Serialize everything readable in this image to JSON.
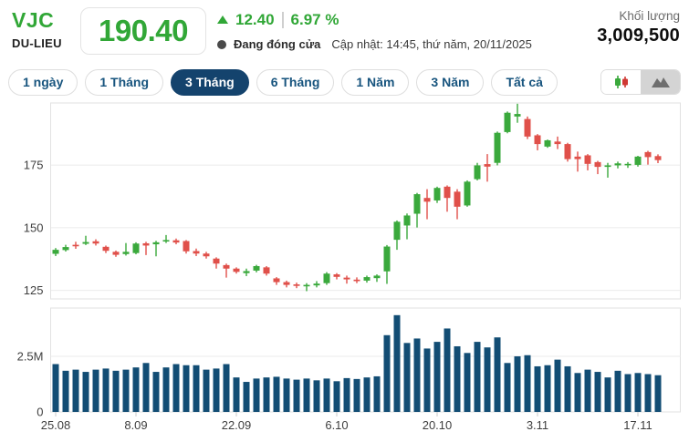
{
  "header": {
    "ticker": "VJC",
    "exchange": "DU-LIEU",
    "price": "190.40",
    "change_value": "12.40",
    "change_percent": "6.97 %",
    "market_status": "Đang đóng cửa",
    "updated": "Cập nhật: 14:45, thứ năm, 20/11/2025",
    "volume_label": "Khối lượng",
    "volume_value": "3,009,500"
  },
  "toolbar": {
    "ranges": [
      "1 ngày",
      "1 Tháng",
      "3 Tháng",
      "6 Tháng",
      "1 Năm",
      "3 Năm",
      "Tất cả"
    ],
    "active_range": "3 Tháng",
    "chart_types": [
      "candlestick",
      "area"
    ],
    "active_chart_type": "candlestick"
  },
  "colors": {
    "up_green": "#3aa93c",
    "down_red": "#e0504a",
    "text_green": "#31a737",
    "volume_bar": "#124d74",
    "button_navy": "#14436d",
    "button_text": "#17547e",
    "grid": "#ebebeb",
    "border": "#e2e2e2",
    "axis_text": "#3f3f3f",
    "tick_mark": "#c8c8c8"
  },
  "chart_data": {
    "type": "candlestick",
    "title": "VJC 3-month daily candlestick with volume",
    "price_axis": {
      "ticks": [
        175,
        150,
        125
      ],
      "min": 121.6,
      "max": 199.8,
      "grid": true
    },
    "volume_axis": {
      "ticks": [
        {
          "value": 2.5,
          "label": "2.5M"
        },
        {
          "value": 0,
          "label": "0"
        }
      ],
      "max": 4.67,
      "unit": "millions"
    },
    "x_labels": [
      {
        "label": "25.08",
        "slot": 0
      },
      {
        "label": "8.09",
        "slot": 8
      },
      {
        "label": "22.09",
        "slot": 18
      },
      {
        "label": "6.10",
        "slot": 28
      },
      {
        "label": "20.10",
        "slot": 38
      },
      {
        "label": "3.11",
        "slot": 48
      },
      {
        "label": "17.11",
        "slot": 58
      }
    ],
    "slots": 62,
    "candles": [
      [
        139.6,
        141.9,
        138.7,
        141.2
      ],
      [
        141.1,
        143.2,
        140.5,
        142.3
      ],
      [
        143.2,
        144.4,
        141.6,
        142.6
      ],
      [
        143.6,
        146.8,
        143.1,
        144.3
      ],
      [
        144.6,
        145.4,
        142.9,
        143.7
      ],
      [
        142.4,
        142.9,
        139.9,
        140.8
      ],
      [
        140.4,
        140.9,
        138.4,
        139.2
      ],
      [
        139.5,
        143.9,
        138.9,
        140.4
      ],
      [
        139.9,
        144.2,
        139.4,
        143.7
      ],
      [
        143.8,
        144.4,
        139.1,
        142.9
      ],
      [
        143.4,
        144.8,
        138.6,
        144.2
      ],
      [
        144.5,
        147.1,
        143.9,
        145.1
      ],
      [
        145.0,
        145.7,
        143.4,
        144.1
      ],
      [
        144.7,
        145.1,
        139.7,
        140.6
      ],
      [
        140.7,
        141.7,
        138.7,
        139.7
      ],
      [
        139.7,
        140.4,
        137.7,
        138.6
      ],
      [
        137.7,
        138.2,
        133.7,
        135.7
      ],
      [
        135.1,
        135.7,
        130.1,
        133.7
      ],
      [
        133.7,
        134.2,
        131.7,
        132.4
      ],
      [
        131.9,
        133.7,
        130.7,
        132.7
      ],
      [
        132.9,
        135.2,
        132.2,
        134.7
      ],
      [
        134.2,
        134.7,
        130.9,
        131.7
      ],
      [
        129.8,
        130.3,
        127.2,
        128.3
      ],
      [
        128.3,
        128.9,
        126.2,
        127.2
      ],
      [
        127.4,
        128.1,
        125.9,
        126.8
      ],
      [
        126.8,
        127.9,
        124.7,
        127.2
      ],
      [
        127.0,
        128.7,
        126.2,
        127.7
      ],
      [
        127.9,
        132.3,
        127.2,
        131.7
      ],
      [
        131.4,
        131.9,
        129.4,
        130.4
      ],
      [
        130.1,
        130.9,
        127.7,
        129.4
      ],
      [
        129.3,
        130.2,
        127.9,
        128.7
      ],
      [
        128.9,
        130.9,
        128.1,
        130.3
      ],
      [
        129.9,
        131.4,
        128.4,
        130.9
      ],
      [
        132.6,
        143.1,
        127.6,
        142.5
      ],
      [
        145.2,
        152.9,
        141.2,
        152.4
      ],
      [
        150.9,
        155.7,
        145.4,
        154.9
      ],
      [
        155.6,
        163.9,
        150.1,
        163.4
      ],
      [
        161.9,
        165.4,
        153.4,
        160.4
      ],
      [
        160.9,
        166.4,
        159.9,
        165.9
      ],
      [
        166.4,
        166.9,
        156.4,
        161.9
      ],
      [
        164.4,
        165.4,
        153.4,
        158.4
      ],
      [
        158.9,
        168.9,
        158.4,
        168.4
      ],
      [
        169.4,
        175.9,
        168.9,
        174.9
      ],
      [
        175.4,
        179.4,
        168.4,
        174.4
      ],
      [
        175.9,
        188.4,
        174.9,
        187.9
      ],
      [
        188.2,
        196.4,
        187.7,
        195.9
      ],
      [
        194.4,
        199.5,
        191.9,
        195.4
      ],
      [
        193.4,
        194.4,
        185.4,
        186.4
      ],
      [
        186.9,
        187.4,
        180.9,
        183.4
      ],
      [
        182.4,
        185.2,
        181.9,
        184.9
      ],
      [
        184.4,
        186.4,
        181.4,
        183.4
      ],
      [
        183.4,
        183.9,
        176.4,
        177.4
      ],
      [
        178.4,
        180.4,
        172.4,
        177.4
      ],
      [
        178.9,
        179.4,
        172.9,
        175.5
      ],
      [
        176.2,
        176.7,
        171.4,
        174.3
      ],
      [
        174.3,
        175.9,
        170.0,
        174.9
      ],
      [
        174.9,
        176.4,
        173.7,
        175.7
      ],
      [
        175.0,
        176.2,
        173.9,
        175.5
      ],
      [
        175.1,
        178.7,
        174.4,
        178.4
      ],
      [
        180.2,
        180.7,
        175.2,
        178.2
      ],
      [
        178.6,
        179.3,
        175.8,
        177.0
      ]
    ],
    "volumes": [
      2.15,
      1.85,
      1.9,
      1.8,
      1.9,
      1.95,
      1.85,
      1.9,
      2.0,
      2.2,
      1.8,
      2.0,
      2.15,
      2.1,
      2.1,
      1.9,
      1.95,
      2.15,
      1.55,
      1.35,
      1.5,
      1.55,
      1.58,
      1.5,
      1.45,
      1.5,
      1.42,
      1.5,
      1.38,
      1.52,
      1.48,
      1.55,
      1.6,
      3.45,
      4.35,
      3.1,
      3.3,
      2.85,
      3.15,
      3.75,
      2.95,
      2.65,
      3.15,
      2.9,
      3.35,
      2.2,
      2.5,
      2.55,
      2.05,
      2.1,
      2.35,
      2.05,
      1.75,
      1.9,
      1.8,
      1.55,
      1.85,
      1.7,
      1.75,
      1.7,
      1.65
    ]
  }
}
